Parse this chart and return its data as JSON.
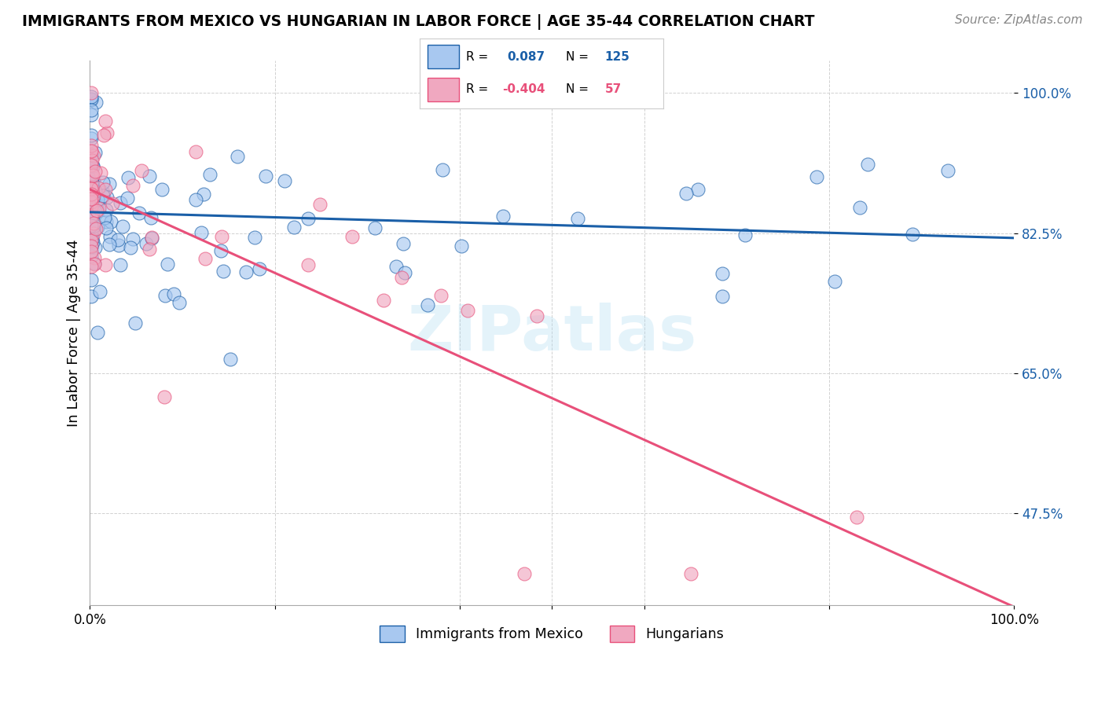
{
  "title": "IMMIGRANTS FROM MEXICO VS HUNGARIAN IN LABOR FORCE | AGE 35-44 CORRELATION CHART",
  "source": "Source: ZipAtlas.com",
  "ylabel": "In Labor Force | Age 35-44",
  "yticks": [
    "47.5%",
    "65.0%",
    "82.5%",
    "100.0%"
  ],
  "ytick_vals": [
    0.475,
    0.65,
    0.825,
    1.0
  ],
  "legend_mexico": "Immigrants from Mexico",
  "legend_hungarian": "Hungarians",
  "R_mexico": "0.087",
  "N_mexico": "125",
  "R_hungarian": "-0.404",
  "N_hungarian": "57",
  "mexico_color": "#a8c8f0",
  "hungarian_color": "#f0a8c0",
  "mexico_line_color": "#1a5fa8",
  "hungarian_line_color": "#e8507a",
  "xmin": 0.0,
  "xmax": 1.0,
  "ymin": 0.36,
  "ymax": 1.04,
  "background_color": "#ffffff",
  "grid_color": "#cccccc"
}
